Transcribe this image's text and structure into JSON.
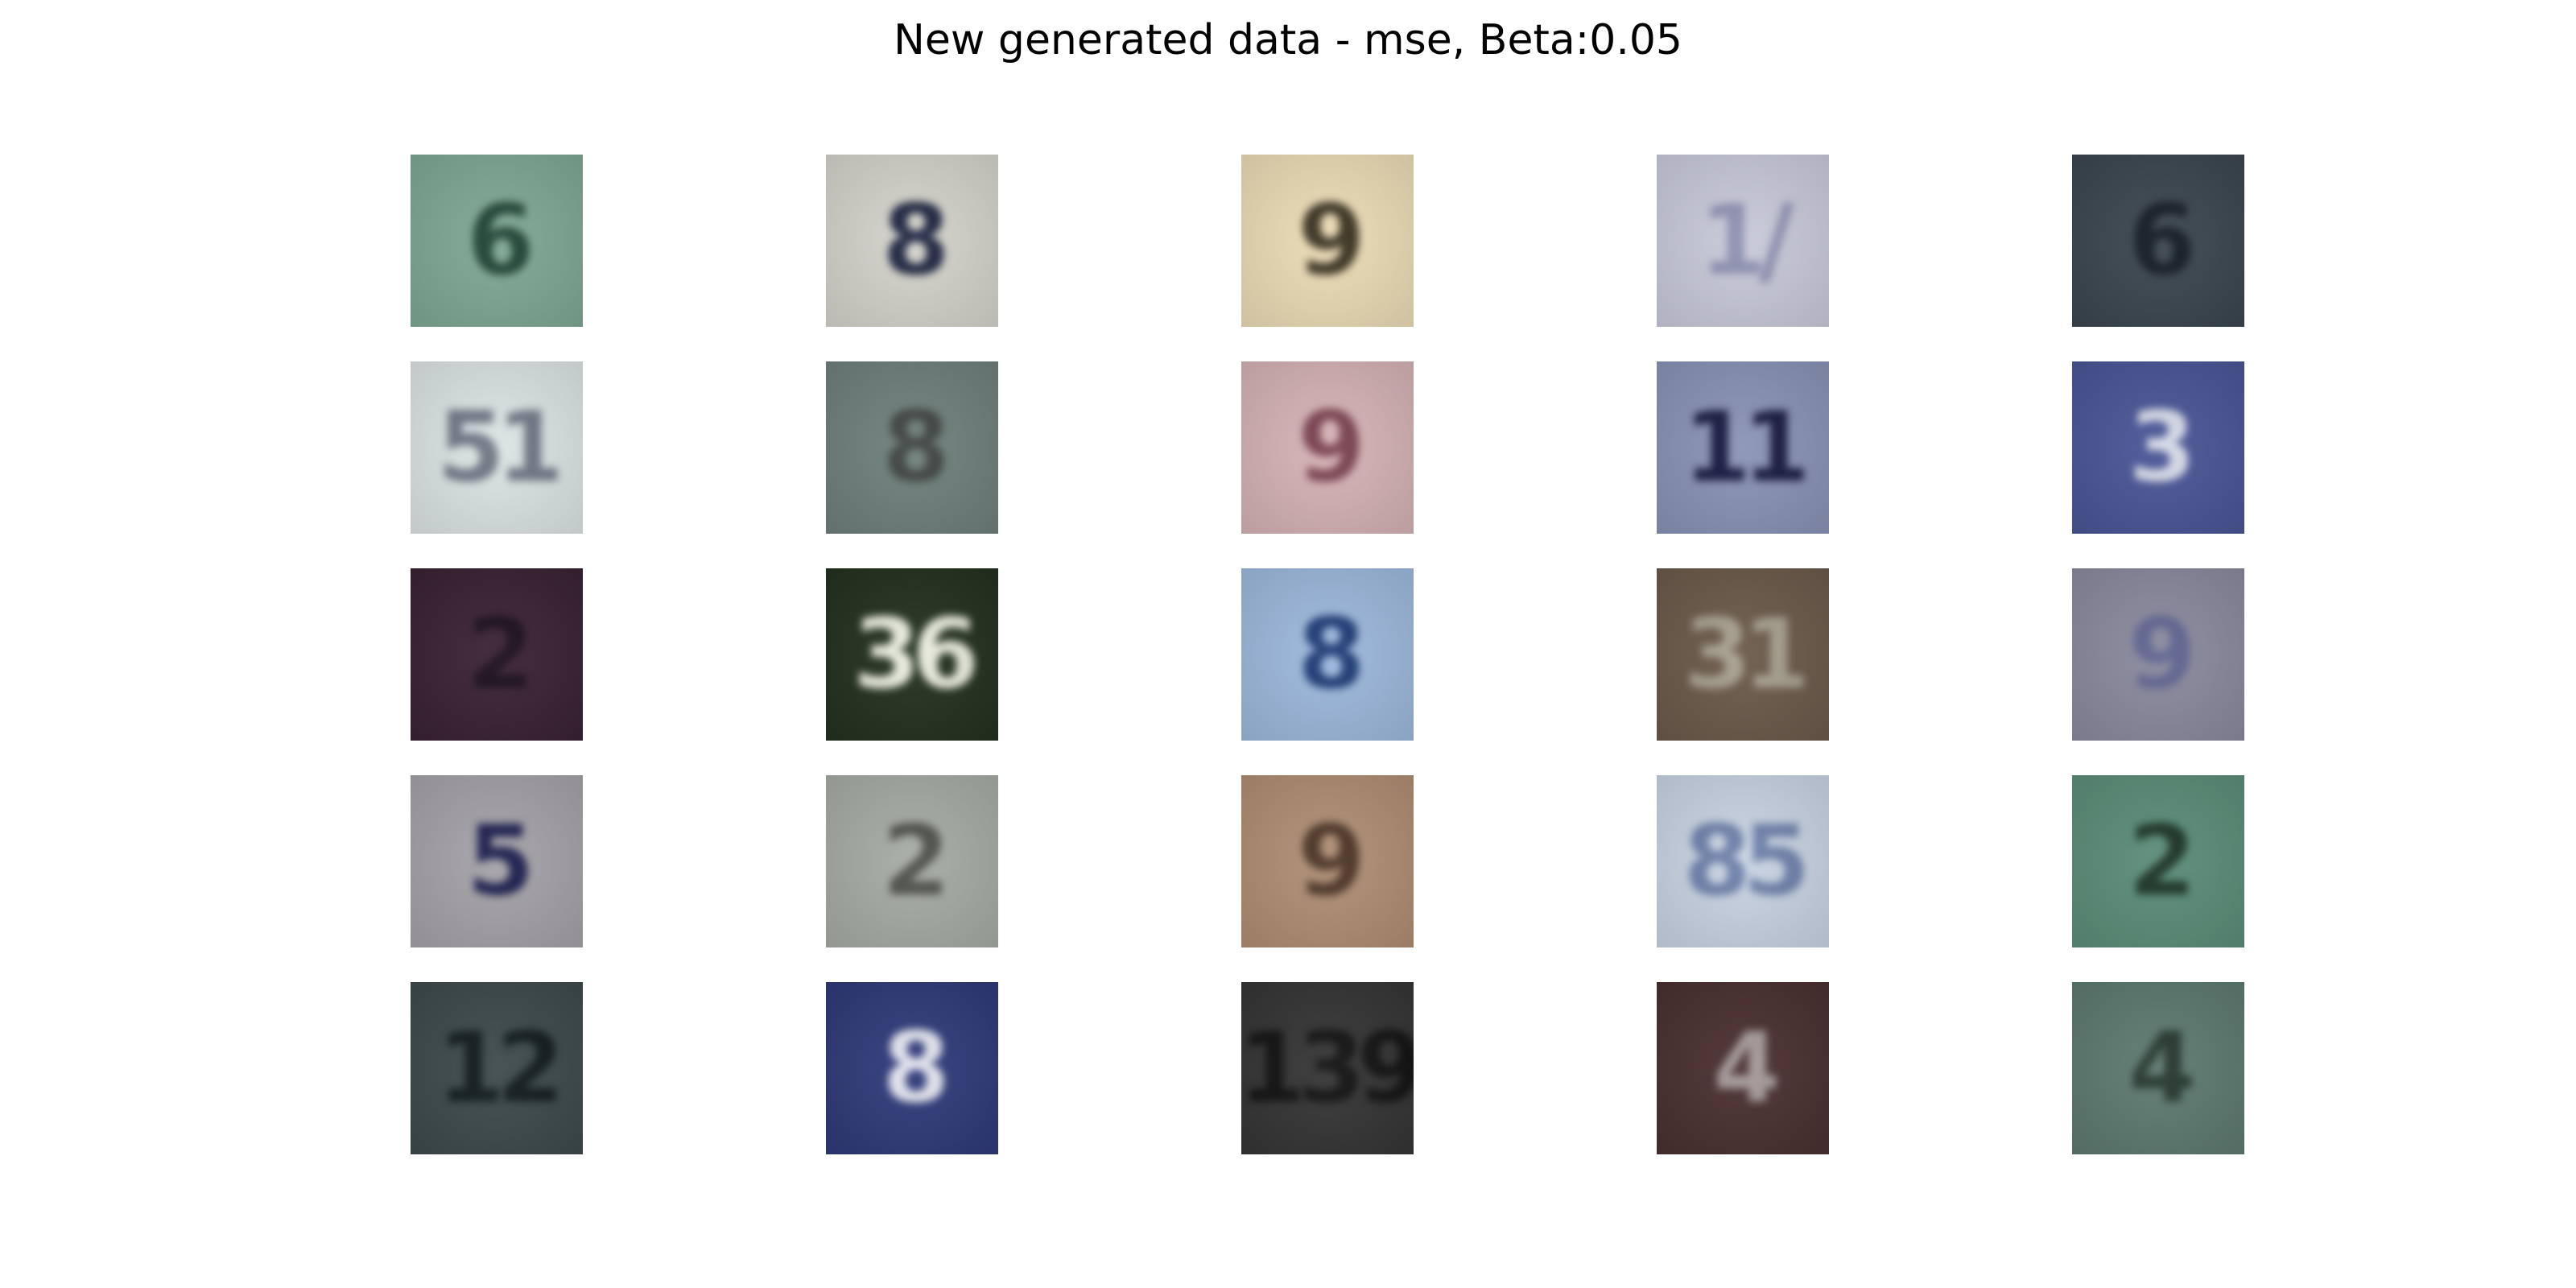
{
  "title": "New generated data - mse, Beta:0.05",
  "grid": {
    "rows": 5,
    "cols": 5,
    "samples": [
      {
        "bg": "#7fa894",
        "fg": "#1f4334",
        "glyph": "6"
      },
      {
        "bg": "#d4d3cb",
        "fg": "#1d2540",
        "glyph": "8"
      },
      {
        "bg": "#ecdcb6",
        "fg": "#3a3220",
        "glyph": "9"
      },
      {
        "bg": "#c9cad9",
        "fg": "#8d90b2",
        "glyph": "1/"
      },
      {
        "bg": "#3b4650",
        "fg": "#111a24",
        "glyph": "6"
      },
      {
        "bg": "#dde4e4",
        "fg": "#6f7685",
        "glyph": "51"
      },
      {
        "bg": "#6f807c",
        "fg": "#3f4441",
        "glyph": "8"
      },
      {
        "bg": "#d6b3b5",
        "fg": "#7a4150",
        "glyph": "9"
      },
      {
        "bg": "#8a93b6",
        "fg": "#16193f",
        "glyph": "11"
      },
      {
        "bg": "#4a5596",
        "fg": "#d7dbe8",
        "glyph": "3"
      },
      {
        "bg": "#3a2234",
        "fg": "#1a0d1c",
        "glyph": "2"
      },
      {
        "bg": "#23311f",
        "fg": "#e9ecde",
        "glyph": "36"
      },
      {
        "bg": "#9db9dd",
        "fg": "#1c3a74",
        "glyph": "8"
      },
      {
        "bg": "#6b5a4b",
        "fg": "#a7a08f",
        "glyph": "31"
      },
      {
        "bg": "#8a8a9e",
        "fg": "#5e6490",
        "glyph": "9"
      },
      {
        "bg": "#a5a3a8",
        "fg": "#1c1e4e",
        "glyph": "5"
      },
      {
        "bg": "#a6aca4",
        "fg": "#4e5149",
        "glyph": "2"
      },
      {
        "bg": "#b08e74",
        "fg": "#4a3425",
        "glyph": "9"
      },
      {
        "bg": "#c9d4e3",
        "fg": "#6d7fa9",
        "glyph": "85"
      },
      {
        "bg": "#5c8d79",
        "fg": "#1b3326",
        "glyph": "2"
      },
      {
        "bg": "#3d4a4c",
        "fg": "#0f1a1c",
        "glyph": "12"
      },
      {
        "bg": "#2f3a79",
        "fg": "#e2e4ee",
        "glyph": "8"
      },
      {
        "bg": "#353536",
        "fg": "#111111",
        "glyph": "139"
      },
      {
        "bg": "#4a3030",
        "fg": "#a49a9a",
        "glyph": "4"
      },
      {
        "bg": "#5e7a70",
        "fg": "#26372f",
        "glyph": "4"
      }
    ]
  }
}
